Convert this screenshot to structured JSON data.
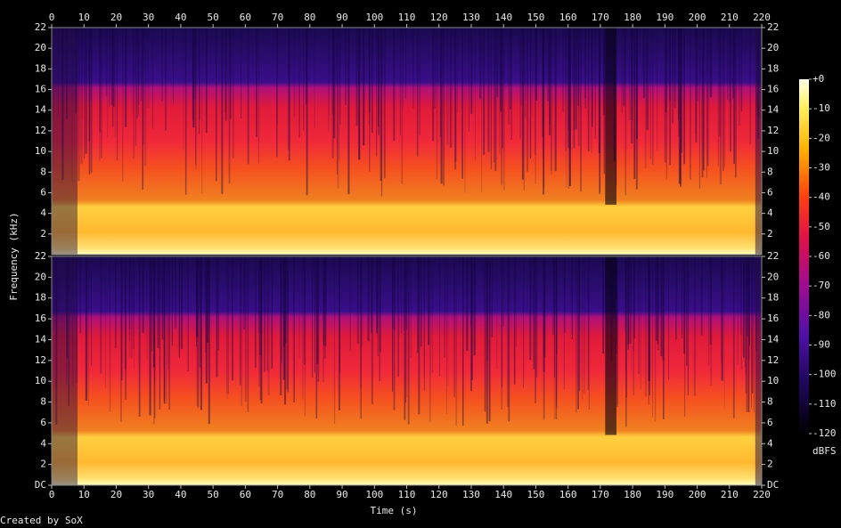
{
  "chart_data": {
    "type": "spectrogram",
    "x_label": "Time (s)",
    "y_label": "Frequency (kHz)",
    "xlim": [
      0,
      220
    ],
    "xticks": [
      0,
      10,
      20,
      30,
      40,
      50,
      60,
      70,
      80,
      90,
      100,
      110,
      120,
      130,
      140,
      150,
      160,
      170,
      180,
      190,
      200,
      210,
      220
    ],
    "channels": [
      {
        "ylim": [
          0,
          22
        ],
        "yticks": [
          2,
          4,
          6,
          8,
          10,
          12,
          14,
          16,
          18,
          20,
          22
        ]
      },
      {
        "ylim": [
          0,
          22
        ],
        "yticks": [
          {
            "value": 0,
            "label": "DC"
          },
          2,
          4,
          6,
          8,
          10,
          12,
          14,
          16,
          18,
          20,
          22
        ]
      }
    ],
    "colorbar": {
      "label": "dBFS",
      "lim": [
        -120,
        0
      ],
      "ticks": [
        {
          "value": 0,
          "label": "+0"
        },
        -10,
        -20,
        -30,
        -40,
        -50,
        -60,
        -70,
        -80,
        -90,
        -100,
        -110,
        -120
      ]
    }
  },
  "footer": "Created by SoX"
}
